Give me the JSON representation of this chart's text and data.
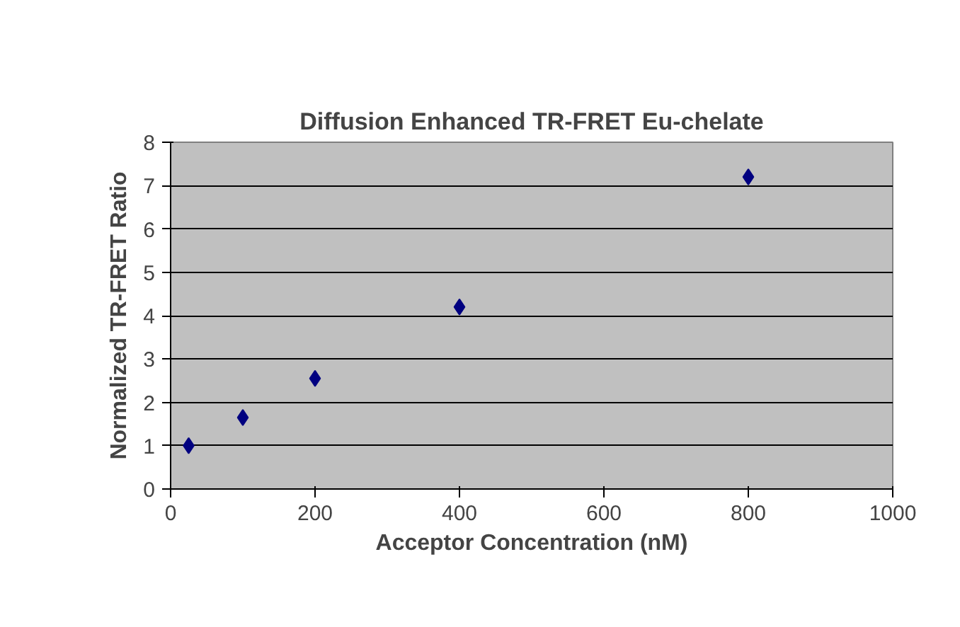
{
  "chart_data": {
    "type": "scatter",
    "title": "Diffusion Enhanced TR-FRET Eu-chelate",
    "xlabel": "Acceptor Concentration (nM)",
    "ylabel": "Normalized TR-FRET Ratio",
    "x": [
      25,
      100,
      200,
      400,
      800
    ],
    "series": [
      {
        "color": "#000080",
        "values": [
          1.0,
          1.65,
          2.55,
          4.2,
          7.2
        ]
      }
    ],
    "xlim": [
      0,
      1000
    ],
    "xticks": [
      0,
      200,
      400,
      600,
      800,
      1000
    ],
    "ylim": [
      0,
      8
    ],
    "yticks": [
      0,
      1,
      2,
      3,
      4,
      5,
      6,
      7,
      8
    ],
    "grid": "y",
    "marker": "diamond"
  }
}
